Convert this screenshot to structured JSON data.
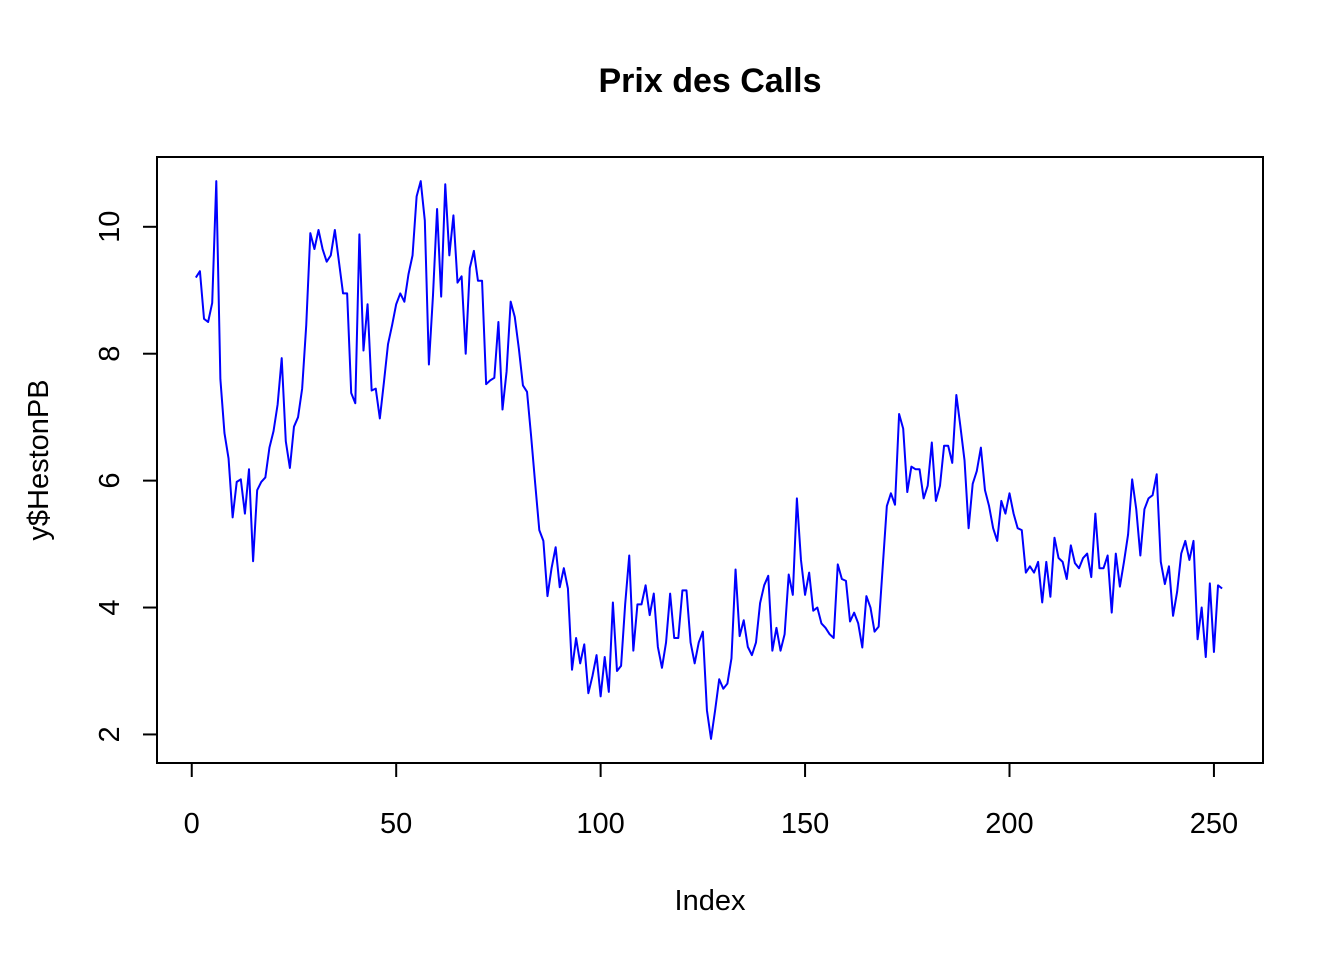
{
  "chart_data": {
    "type": "line",
    "title": "Prix des Calls",
    "xlabel": "Index",
    "ylabel": "y$HestonPB",
    "xlim": [
      -8.5,
      262
    ],
    "ylim": [
      1.55,
      11.1
    ],
    "x_ticks": [
      0,
      50,
      100,
      150,
      200,
      250
    ],
    "y_ticks": [
      2,
      4,
      6,
      8,
      10
    ],
    "grid": false,
    "line_color": "#0000ff",
    "series": [
      {
        "values": [
          9.2,
          9.3,
          8.55,
          8.5,
          8.8,
          10.72,
          7.6,
          6.75,
          6.35,
          5.42,
          5.98,
          6.02,
          5.48,
          6.18,
          4.73,
          5.85,
          5.98,
          6.05,
          6.52,
          6.78,
          7.2,
          7.93,
          6.62,
          6.2,
          6.85,
          7.0,
          7.45,
          8.45,
          9.9,
          9.65,
          9.95,
          9.65,
          9.45,
          9.55,
          9.95,
          9.45,
          8.95,
          8.95,
          7.38,
          7.22,
          9.88,
          8.05,
          8.78,
          7.42,
          7.45,
          6.98,
          7.55,
          8.15,
          8.45,
          8.78,
          8.95,
          8.82,
          9.25,
          9.55,
          10.48,
          10.72,
          10.1,
          7.83,
          8.92,
          10.28,
          8.9,
          10.67,
          9.55,
          10.18,
          9.12,
          9.22,
          8.0,
          9.35,
          9.62,
          9.15,
          9.15,
          7.52,
          7.58,
          7.62,
          8.5,
          7.12,
          7.72,
          8.82,
          8.58,
          8.08,
          7.5,
          7.4,
          6.7,
          5.95,
          5.22,
          5.05,
          4.18,
          4.62,
          4.95,
          4.32,
          4.62,
          4.3,
          3.02,
          3.52,
          3.12,
          3.42,
          2.65,
          2.92,
          3.25,
          2.6,
          3.22,
          2.67,
          4.08,
          3.0,
          3.08,
          4.05,
          4.82,
          3.32,
          4.05,
          4.05,
          4.35,
          3.88,
          4.22,
          3.38,
          3.05,
          3.45,
          4.22,
          3.52,
          3.52,
          4.27,
          4.27,
          3.45,
          3.12,
          3.45,
          3.62,
          2.38,
          1.93,
          2.38,
          2.87,
          2.72,
          2.8,
          3.2,
          4.6,
          3.55,
          3.8,
          3.38,
          3.25,
          3.45,
          4.07,
          4.35,
          4.5,
          3.32,
          3.68,
          3.32,
          3.58,
          4.52,
          4.2,
          5.72,
          4.75,
          4.2,
          4.55,
          3.95,
          4.0,
          3.75,
          3.68,
          3.58,
          3.52,
          4.68,
          4.45,
          4.42,
          3.78,
          3.92,
          3.75,
          3.37,
          4.18,
          4.0,
          3.62,
          3.7,
          4.65,
          5.6,
          5.8,
          5.62,
          7.05,
          6.82,
          5.82,
          6.22,
          6.18,
          6.18,
          5.72,
          5.92,
          6.6,
          5.68,
          5.92,
          6.55,
          6.55,
          6.28,
          7.35,
          6.85,
          6.32,
          5.25,
          5.95,
          6.15,
          6.52,
          5.85,
          5.6,
          5.25,
          5.05,
          5.68,
          5.48,
          5.8,
          5.48,
          5.25,
          5.22,
          4.55,
          4.65,
          4.55,
          4.72,
          4.08,
          4.72,
          4.17,
          5.1,
          4.78,
          4.72,
          4.45,
          4.98,
          4.7,
          4.62,
          4.78,
          4.85,
          4.48,
          5.48,
          4.62,
          4.62,
          4.82,
          3.92,
          4.85,
          4.33,
          4.72,
          5.15,
          6.02,
          5.55,
          4.82,
          5.55,
          5.72,
          5.77,
          6.1,
          4.72,
          4.37,
          4.65,
          3.87,
          4.25,
          4.85,
          5.05,
          4.75,
          5.05,
          3.5,
          4.0,
          3.22,
          4.38,
          3.3,
          4.35,
          4.3
        ]
      }
    ]
  }
}
